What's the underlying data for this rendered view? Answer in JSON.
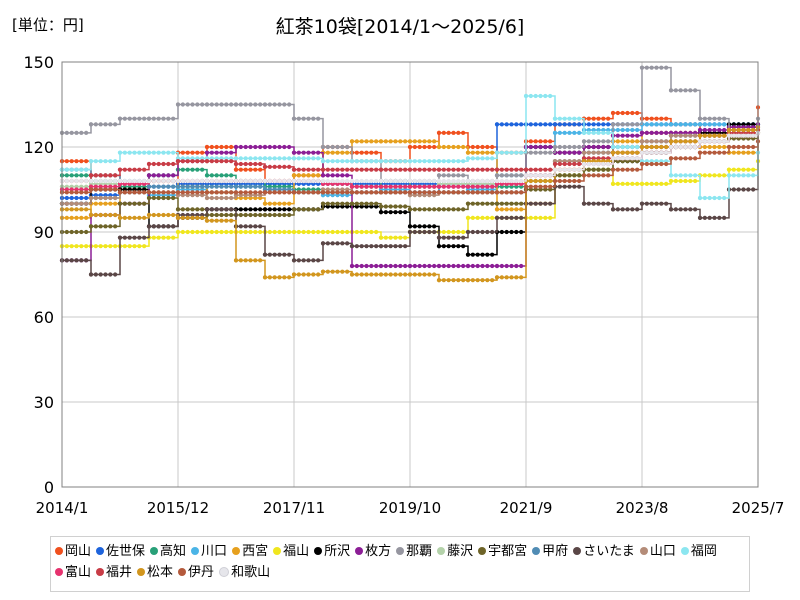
{
  "header": {
    "unit_label": "[単位：円]",
    "title": "紅茶10袋[2014/1～2025/6]"
  },
  "chart_data": {
    "type": "line",
    "title": "紅茶10袋[2014/1～2025/6]",
    "unit": "[単位：円]",
    "ylim": [
      0,
      150
    ],
    "y_ticks": [
      "0",
      "30",
      "60",
      "90",
      "120",
      "150"
    ],
    "x_ticks": [
      "2014/1",
      "2015/12",
      "2017/11",
      "2019/10",
      "2021/9",
      "2023/8",
      "2025/7"
    ],
    "grid": true,
    "legend_position": "bottom",
    "series": [
      {
        "name": "岡山",
        "color": "#f0501e",
        "values": [
          115,
          110,
          105,
          108,
          118,
          120,
          112,
          108,
          110,
          120,
          118,
          115,
          120,
          125,
          120,
          118,
          122,
          128,
          130,
          132,
          130,
          128,
          125,
          127,
          134
        ]
      },
      {
        "name": "佐世保",
        "color": "#1e64dc",
        "values": [
          102,
          103,
          105,
          106,
          107,
          107,
          107,
          107,
          107,
          107,
          107,
          107,
          107,
          107,
          107,
          128,
          128,
          128,
          128,
          128,
          128,
          128,
          128,
          128,
          128
        ]
      },
      {
        "name": "高知",
        "color": "#28a078",
        "values": [
          110,
          108,
          106,
          110,
          112,
          110,
          108,
          106,
          105,
          104,
          106,
          108,
          106,
          104,
          106,
          106,
          108,
          110,
          112,
          116,
          118,
          120,
          122,
          124,
          126
        ]
      },
      {
        "name": "川口",
        "color": "#4bb4e6",
        "values": [
          100,
          102,
          104,
          103,
          105,
          104,
          106,
          105,
          104,
          103,
          104,
          105,
          104,
          106,
          105,
          110,
          120,
          125,
          126,
          126,
          128,
          128,
          128,
          128,
          128
        ]
      },
      {
        "name": "西宮",
        "color": "#e6a01e",
        "values": [
          95,
          100,
          105,
          108,
          106,
          104,
          102,
          100,
          110,
          118,
          122,
          122,
          122,
          120,
          118,
          98,
          100,
          110,
          115,
          122,
          125,
          125,
          120,
          118,
          125
        ]
      },
      {
        "name": "福山",
        "color": "#f0e61e",
        "values": [
          85,
          85,
          85,
          88,
          90,
          90,
          90,
          90,
          90,
          90,
          90,
          88,
          90,
          90,
          95,
          95,
          95,
          110,
          112,
          107,
          107,
          108,
          110,
          112,
          115
        ]
      },
      {
        "name": "所沢",
        "color": "#000000",
        "values": [
          100,
          105,
          105,
          92,
          95,
          98,
          98,
          98,
          98,
          99,
          99,
          97,
          92,
          85,
          82,
          90,
          120,
          118,
          120,
          115,
          118,
          120,
          125,
          128,
          128
        ]
      },
      {
        "name": "枚方",
        "color": "#8c1e96",
        "values": [
          80,
          96,
          100,
          110,
          115,
          118,
          120,
          120,
          118,
          110,
          78,
          78,
          78,
          78,
          78,
          78,
          120,
          118,
          120,
          124,
          125,
          125,
          126,
          127,
          128
        ]
      },
      {
        "name": "那覇",
        "color": "#9696a0",
        "values": [
          125,
          128,
          130,
          130,
          135,
          135,
          135,
          135,
          130,
          120,
          115,
          108,
          108,
          110,
          108,
          110,
          118,
          120,
          122,
          128,
          148,
          140,
          130,
          125,
          130
        ]
      },
      {
        "name": "藤沢",
        "color": "#b4d2aa",
        "values": [
          106,
          107,
          107,
          108,
          108,
          108,
          108,
          108,
          108,
          107,
          106,
          106,
          106,
          107,
          107,
          107,
          108,
          110,
          112,
          118,
          120,
          122,
          124,
          125,
          126
        ]
      },
      {
        "name": "宇都宮",
        "color": "#6e6428",
        "values": [
          90,
          92,
          100,
          102,
          98,
          96,
          96,
          96,
          98,
          100,
          100,
          99,
          98,
          98,
          100,
          100,
          105,
          110,
          112,
          115,
          118,
          120,
          122,
          123,
          125
        ]
      },
      {
        "name": "甲府",
        "color": "#508cb4",
        "values": [
          112,
          110,
          108,
          106,
          106,
          106,
          106,
          105,
          104,
          104,
          104,
          104,
          104,
          104,
          104,
          104,
          110,
          115,
          118,
          120,
          122,
          124,
          124,
          126,
          127
        ]
      },
      {
        "name": "さいたま",
        "color": "#5a4646",
        "values": [
          80,
          75,
          88,
          92,
          96,
          98,
          92,
          82,
          80,
          86,
          85,
          85,
          90,
          88,
          90,
          95,
          100,
          106,
          100,
          98,
          100,
          98,
          95,
          105,
          125
        ]
      },
      {
        "name": "山口",
        "color": "#b48c78",
        "values": [
          100,
          102,
          104,
          104,
          103,
          102,
          103,
          104,
          104,
          105,
          104,
          104,
          103,
          104,
          104,
          104,
          110,
          115,
          118,
          120,
          122,
          124,
          124,
          126,
          127
        ]
      },
      {
        "name": "福岡",
        "color": "#8ce6f0",
        "values": [
          112,
          115,
          118,
          118,
          116,
          116,
          116,
          116,
          116,
          115,
          115,
          115,
          115,
          115,
          116,
          118,
          138,
          130,
          125,
          120,
          115,
          110,
          102,
          110,
          118
        ]
      },
      {
        "name": "富山",
        "color": "#e6326e",
        "values": [
          105,
          106,
          107,
          108,
          108,
          108,
          108,
          108,
          108,
          107,
          106,
          106,
          106,
          106,
          106,
          107,
          110,
          112,
          114,
          116,
          118,
          120,
          122,
          124,
          126
        ]
      },
      {
        "name": "福井",
        "color": "#c83c46",
        "values": [
          108,
          110,
          112,
          114,
          115,
          115,
          114,
          113,
          112,
          112,
          112,
          112,
          112,
          112,
          112,
          112,
          112,
          114,
          116,
          118,
          120,
          122,
          124,
          125,
          126
        ]
      },
      {
        "name": "松本",
        "color": "#d2961e",
        "values": [
          98,
          96,
          95,
          96,
          95,
          94,
          80,
          74,
          75,
          76,
          75,
          75,
          75,
          73,
          73,
          74,
          108,
          112,
          115,
          118,
          120,
          122,
          124,
          126,
          127
        ]
      },
      {
        "name": "伊丹",
        "color": "#b45a3c",
        "values": [
          104,
          105,
          104,
          104,
          104,
          104,
          104,
          104,
          104,
          104,
          104,
          104,
          104,
          104,
          104,
          104,
          106,
          108,
          110,
          112,
          114,
          116,
          118,
          120,
          122
        ]
      },
      {
        "name": "和歌山",
        "color": "#e6e6eb",
        "values": [
          108,
          108,
          108,
          108,
          108,
          108,
          108,
          108,
          108,
          108,
          108,
          108,
          108,
          108,
          108,
          108,
          110,
          112,
          114,
          116,
          118,
          120,
          122,
          124,
          125
        ]
      }
    ]
  }
}
